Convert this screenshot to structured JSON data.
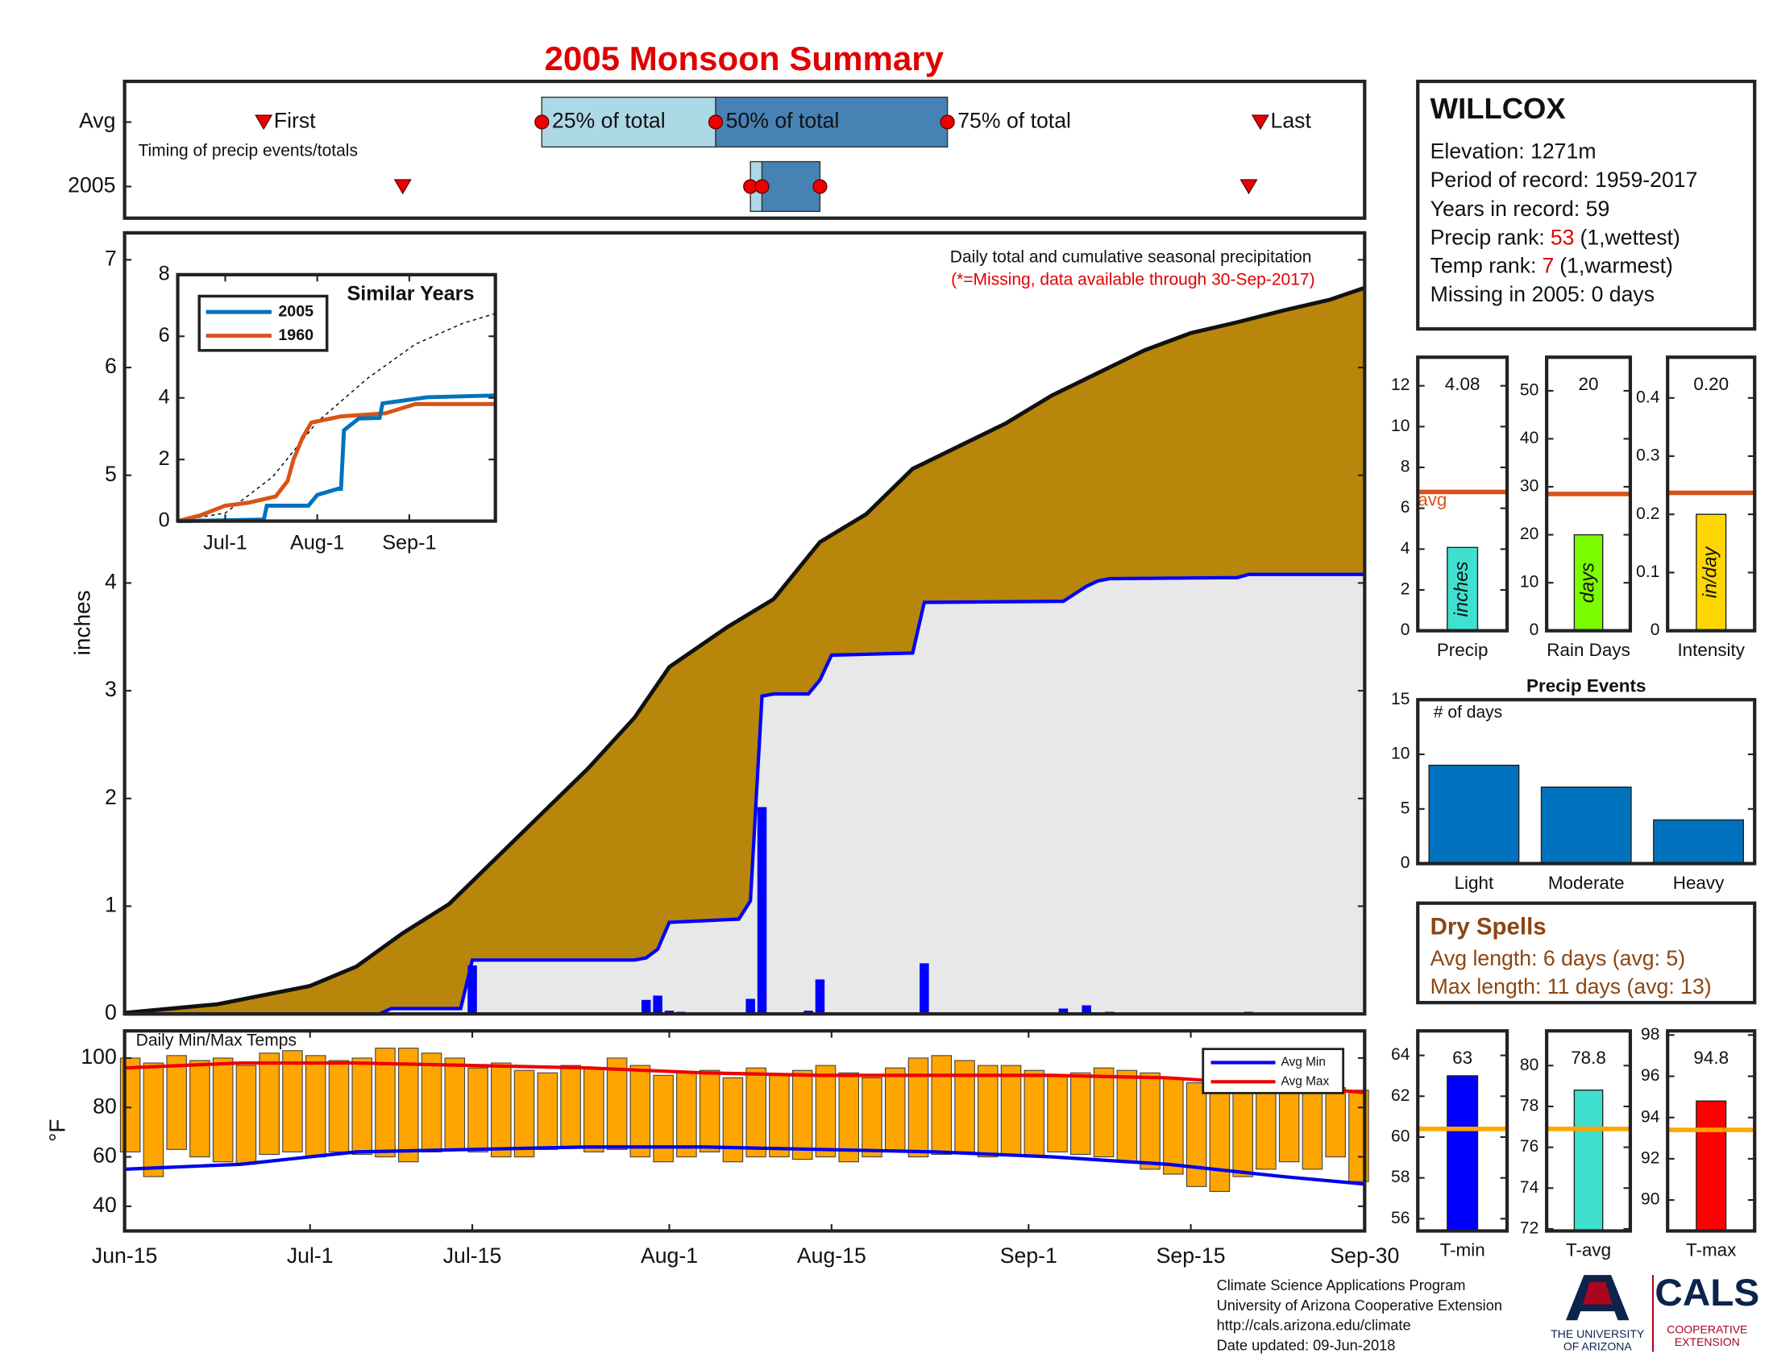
{
  "title": "2005 Monsoon Summary",
  "station": {
    "name": "WILLCOX",
    "lines": [
      "Elevation: 1271m",
      "Period of record: 1959-2017",
      "Years in record: 59"
    ],
    "ranks": [
      {
        "label": "Precip rank:",
        "rank": "53",
        "note": "(1,wettest)"
      },
      {
        "label": "Temp rank:",
        "rank": "7",
        "note": "(1,warmest)"
      }
    ],
    "missing": "Missing in 2005: 0 days"
  },
  "dry_spells": {
    "title": "Dry Spells",
    "lines": [
      "Avg length: 6 days (avg: 5)",
      "Max length: 11 days (avg: 13)"
    ]
  },
  "footer": {
    "lines": [
      "Climate Science Applications Program",
      "University of Arizona Cooperative Extension",
      "http://cals.arizona.edu/climate",
      "Date updated: 09-Jun-2018"
    ],
    "university": [
      "THE UNIVERSITY",
      "OF ARIZONA"
    ],
    "cals": "CALS",
    "extension": [
      "COOPERATIVE",
      "EXTENSION"
    ]
  },
  "chart_data": [
    {
      "type": "timing",
      "annotation": "Timing of precip events/totals",
      "xlim": [
        0,
        107
      ],
      "labels": {
        "first": "First",
        "q25": "25% of total",
        "q50": "50% of total",
        "q75": "75% of total",
        "last": "Last"
      },
      "colors": {
        "low": "#add8e6",
        "high": "#4682b4",
        "marker": "#ee0000"
      },
      "rows": [
        {
          "label": "Avg",
          "first": 12,
          "q25": 36,
          "q50": 51,
          "q75": 71,
          "last": 98
        },
        {
          "label": "2005",
          "first": 24,
          "q25": 54,
          "q50": 55,
          "q75": 60,
          "last": 97
        }
      ]
    },
    {
      "type": "cumulative",
      "annotation": "Daily total and cumulative seasonal precipitation",
      "note": "(*=Missing, data available through 30-Sep-2017)",
      "ylabel": "inches",
      "xlim": [
        0,
        107
      ],
      "ylim": [
        0,
        7.25
      ],
      "yticks": [
        0,
        1,
        2,
        3,
        4,
        5,
        6,
        7
      ],
      "average": {
        "color": "#b8860b",
        "line_color": "#111111",
        "x": [
          0,
          8,
          16,
          20,
          24,
          28,
          32,
          36,
          40,
          44,
          47,
          52,
          56,
          60,
          64,
          68,
          72,
          76,
          80,
          84,
          88,
          92,
          96,
          100,
          104,
          107
        ],
        "values": [
          0.01,
          0.09,
          0.26,
          0.44,
          0.75,
          1.02,
          1.44,
          1.86,
          2.28,
          2.75,
          3.22,
          3.59,
          3.85,
          4.38,
          4.64,
          5.06,
          5.27,
          5.48,
          5.74,
          5.95,
          6.16,
          6.32,
          6.42,
          6.53,
          6.63,
          6.74
        ]
      },
      "season": {
        "color": "#0000ff",
        "fill": "#e8e8e8",
        "x": [
          0,
          22,
          23,
          29,
          30,
          44,
          45,
          46,
          47,
          53,
          54,
          55,
          56,
          59,
          60,
          61,
          68,
          69,
          81,
          82,
          83,
          84,
          85,
          96,
          97,
          107
        ],
        "values": [
          0,
          0,
          0.05,
          0.05,
          0.5,
          0.5,
          0.52,
          0.6,
          0.85,
          0.88,
          1.05,
          2.95,
          2.97,
          2.97,
          3.1,
          3.33,
          3.35,
          3.82,
          3.83,
          3.9,
          3.97,
          4.02,
          4.04,
          4.05,
          4.08,
          4.08
        ]
      },
      "daily": {
        "color": "#0000ff",
        "x": [
          30,
          45,
          46,
          47,
          48,
          54,
          55,
          59,
          60,
          69,
          81,
          83,
          85,
          97
        ],
        "values": [
          0.45,
          0.13,
          0.17,
          0.03,
          0.02,
          0.14,
          1.92,
          0.03,
          0.32,
          0.47,
          0.05,
          0.08,
          0.02,
          0.02
        ]
      }
    },
    {
      "type": "range",
      "title": "Daily Min/Max Temps",
      "ylabel": "°F",
      "color": "#ffa500",
      "xlim": [
        0,
        107
      ],
      "ylim": [
        30,
        111
      ],
      "yticks": [
        40,
        60,
        80,
        100
      ],
      "xticks": [
        {
          "value": 0,
          "label": "Jun-15"
        },
        {
          "value": 16,
          "label": "Jul-1"
        },
        {
          "value": 30,
          "label": "Jul-15"
        },
        {
          "value": 47,
          "label": "Aug-1"
        },
        {
          "value": 61,
          "label": "Aug-15"
        },
        {
          "value": 78,
          "label": "Sep-1"
        },
        {
          "value": 92,
          "label": "Sep-15"
        },
        {
          "value": 107,
          "label": "Sep-30"
        }
      ],
      "x": [
        0,
        2,
        4,
        6,
        8,
        10,
        12,
        14,
        16,
        18,
        20,
        22,
        24,
        26,
        28,
        30,
        32,
        34,
        36,
        38,
        40,
        42,
        44,
        46,
        48,
        50,
        52,
        54,
        56,
        58,
        60,
        62,
        64,
        66,
        68,
        70,
        72,
        74,
        76,
        78,
        80,
        82,
        84,
        86,
        88,
        90,
        92,
        94,
        96,
        98,
        100,
        102,
        104,
        106
      ],
      "max": [
        100,
        98,
        101,
        99,
        100,
        97,
        102,
        103,
        101,
        99,
        100,
        104,
        104,
        102,
        100,
        96,
        98,
        95,
        94,
        97,
        96,
        100,
        97,
        93,
        94,
        95,
        92,
        96,
        93,
        95,
        97,
        94,
        92,
        96,
        100,
        101,
        99,
        97,
        97,
        95,
        93,
        94,
        96,
        95,
        94,
        92,
        90,
        89,
        91,
        95,
        90,
        92,
        88,
        87
      ],
      "min": [
        62,
        52,
        63,
        60,
        58,
        57,
        61,
        62,
        60,
        62,
        61,
        60,
        58,
        62,
        63,
        62,
        60,
        60,
        63,
        64,
        62,
        63,
        60,
        58,
        60,
        62,
        58,
        60,
        60,
        59,
        60,
        58,
        60,
        62,
        60,
        61,
        62,
        60,
        61,
        60,
        62,
        61,
        60,
        58,
        55,
        53,
        48,
        46,
        52,
        55,
        58,
        55,
        60,
        50
      ],
      "series": [
        {
          "name": "Avg Min",
          "color": "#0000ee",
          "x": [
            0,
            10,
            20,
            30,
            40,
            50,
            60,
            70,
            80,
            90,
            100,
            107
          ],
          "values": [
            55,
            57,
            62,
            63,
            64,
            64,
            63,
            62,
            60,
            57,
            52,
            49
          ]
        },
        {
          "name": "Avg Max",
          "color": "#ee0000",
          "x": [
            0,
            10,
            20,
            30,
            40,
            50,
            60,
            70,
            80,
            90,
            100,
            107
          ],
          "values": [
            96,
            98,
            98,
            97,
            96,
            94,
            93,
            93,
            93,
            92,
            89,
            86
          ]
        }
      ]
    },
    {
      "type": "line",
      "title": "Similar Years",
      "xlim": [
        0,
        107
      ],
      "ylim": [
        0,
        8
      ],
      "yticks": [
        0,
        2,
        4,
        6,
        8
      ],
      "xticks": [
        {
          "value": 16,
          "label": "Jul-1"
        },
        {
          "value": 47,
          "label": "Aug-1"
        },
        {
          "value": 78,
          "label": "Sep-1"
        }
      ],
      "reference": {
        "color": "#000000",
        "x": [
          0,
          16,
          32,
          47,
          64,
          80,
          96,
          107
        ],
        "values": [
          0.01,
          0.26,
          1.44,
          3.22,
          4.64,
          5.74,
          6.42,
          6.74
        ]
      },
      "series": [
        {
          "name": "2005",
          "color": "#0072bd",
          "x": [
            0,
            29,
            30,
            44,
            47,
            54,
            55,
            56,
            61,
            68,
            69,
            84,
            107
          ],
          "values": [
            0,
            0.05,
            0.5,
            0.5,
            0.85,
            1.05,
            1.05,
            2.95,
            3.33,
            3.35,
            3.82,
            4.02,
            4.08
          ]
        },
        {
          "name": "1960",
          "color": "#d95319",
          "x": [
            0,
            8,
            16,
            24,
            33,
            37,
            39,
            42,
            45,
            55,
            70,
            80,
            107
          ],
          "values": [
            0,
            0.2,
            0.5,
            0.6,
            0.8,
            1.3,
            2,
            2.7,
            3.2,
            3.4,
            3.5,
            3.8,
            3.8
          ]
        }
      ]
    },
    {
      "type": "bar",
      "categories": [
        "Precip"
      ],
      "values": [
        4.08
      ],
      "color": "#40e0d0",
      "data_labels": true,
      "inner_label": "inches",
      "ylim": [
        0,
        13.4
      ],
      "yticks": [
        0,
        2,
        4,
        6,
        8,
        10,
        12
      ],
      "avg": 6.8,
      "avg_color": "#d95319",
      "avg_label": "avg"
    },
    {
      "type": "bar",
      "categories": [
        "Rain Days"
      ],
      "values": [
        20
      ],
      "color": "#7cfc00",
      "data_labels": true,
      "inner_label": "days",
      "ylim": [
        0,
        57
      ],
      "yticks": [
        0,
        10,
        20,
        30,
        40,
        50
      ],
      "avg": 28.5,
      "avg_color": "#d95319"
    },
    {
      "type": "bar",
      "categories": [
        "Intensity"
      ],
      "values": [
        0.2
      ],
      "value_labels": [
        "0.20"
      ],
      "color": "#ffd700",
      "data_labels": true,
      "inner_label": "in/day",
      "ylim": [
        0,
        0.47
      ],
      "yticks": [
        0,
        0.1,
        0.2,
        0.3,
        0.4
      ],
      "avg": 0.237,
      "avg_color": "#d95319"
    },
    {
      "type": "bar",
      "title": "Precip Events",
      "annotation": "# of days",
      "categories": [
        "Light",
        "Moderate",
        "Heavy"
      ],
      "values": [
        9,
        7,
        4
      ],
      "color": "#0072bd",
      "ylim": [
        0,
        15
      ],
      "yticks": [
        0,
        5,
        10,
        15
      ]
    },
    {
      "type": "bar",
      "categories": [
        "T-min"
      ],
      "values": [
        63
      ],
      "color": "#0000ff",
      "data_labels": true,
      "ylim": [
        55.4,
        65.2
      ],
      "yticks": [
        56,
        58,
        60,
        62,
        64
      ],
      "avg": 60.4,
      "avg_color": "#ffa500"
    },
    {
      "type": "bar",
      "categories": [
        "T-avg"
      ],
      "values": [
        78.8
      ],
      "color": "#40e0d0",
      "data_labels": true,
      "ylim": [
        71.9,
        81.7
      ],
      "yticks": [
        72,
        74,
        76,
        78,
        80
      ],
      "avg": 76.9,
      "avg_color": "#ffa500"
    },
    {
      "type": "bar",
      "categories": [
        "T-max"
      ],
      "values": [
        94.8
      ],
      "color": "#ff0000",
      "data_labels": true,
      "ylim": [
        88.5,
        98.2
      ],
      "yticks": [
        90,
        92,
        94,
        96,
        98
      ],
      "avg": 93.4,
      "avg_color": "#ffa500"
    }
  ]
}
